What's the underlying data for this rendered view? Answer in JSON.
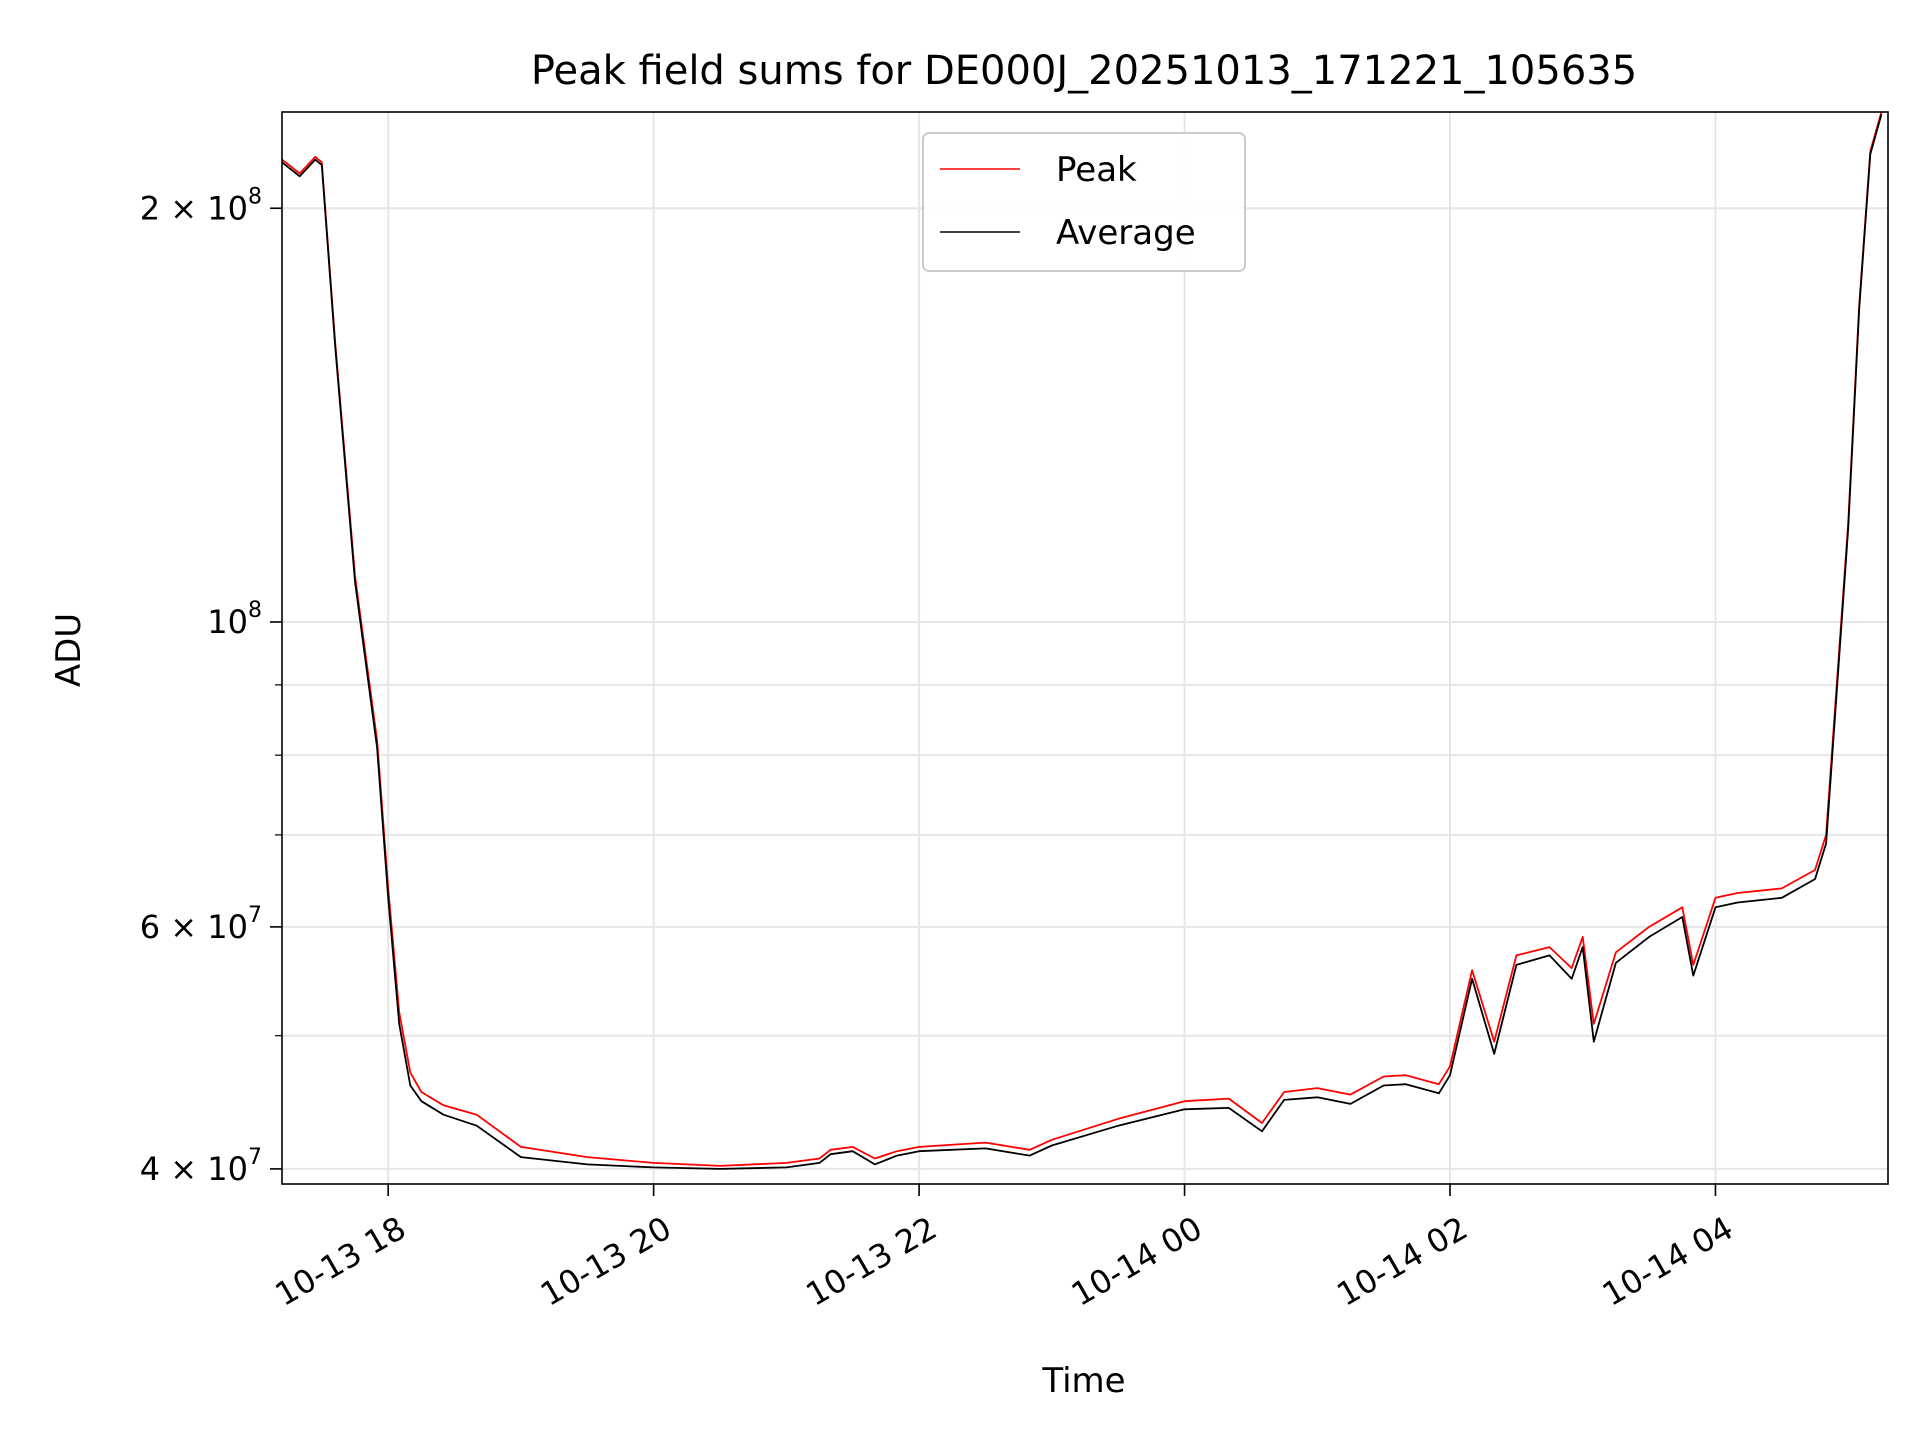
{
  "chart_data": {
    "type": "line",
    "title": "Peak field sums for DE000J_20251013_171221_105635",
    "xlabel": "Time",
    "ylabel": "ADU",
    "x_unit": "datetime",
    "xlim": [
      "2025-10-13 17:12",
      "2025-10-14 05:18"
    ],
    "ylim": [
      39000000,
      235000000
    ],
    "y_scale": "log",
    "grid": true,
    "legend_position": "top-center",
    "x_ticks": [
      {
        "value": "2025-10-13 18:00",
        "label": "10-13 18"
      },
      {
        "value": "2025-10-13 20:00",
        "label": "10-13 20"
      },
      {
        "value": "2025-10-13 22:00",
        "label": "10-13 22"
      },
      {
        "value": "2025-10-14 00:00",
        "label": "10-14 00"
      },
      {
        "value": "2025-10-14 02:00",
        "label": "10-14 02"
      },
      {
        "value": "2025-10-14 04:00",
        "label": "10-14 04"
      }
    ],
    "y_ticks": [
      {
        "value": 40000000,
        "mantissa": "4",
        "exponent": "7"
      },
      {
        "value": 60000000,
        "mantissa": "6",
        "exponent": "7"
      },
      {
        "value": 100000000,
        "mantissa": "",
        "exponent": "8"
      },
      {
        "value": 200000000,
        "mantissa": "2",
        "exponent": "8"
      }
    ],
    "y_minor_ticks": [
      50000000,
      70000000,
      80000000,
      90000000
    ],
    "series": [
      {
        "name": "Peak",
        "color": "#ff0000",
        "x": [
          "2025-10-13 17:12",
          "2025-10-13 17:20",
          "2025-10-13 17:27",
          "2025-10-13 17:30",
          "2025-10-13 17:36",
          "2025-10-13 17:45",
          "2025-10-13 17:55",
          "2025-10-13 18:00",
          "2025-10-13 18:05",
          "2025-10-13 18:10",
          "2025-10-13 18:15",
          "2025-10-13 18:25",
          "2025-10-13 18:40",
          "2025-10-13 19:00",
          "2025-10-13 19:30",
          "2025-10-13 20:00",
          "2025-10-13 20:30",
          "2025-10-13 21:00",
          "2025-10-13 21:15",
          "2025-10-13 21:20",
          "2025-10-13 21:30",
          "2025-10-13 21:40",
          "2025-10-13 21:50",
          "2025-10-13 22:00",
          "2025-10-13 22:30",
          "2025-10-13 22:50",
          "2025-10-13 23:00",
          "2025-10-13 23:30",
          "2025-10-14 00:00",
          "2025-10-14 00:20",
          "2025-10-14 00:35",
          "2025-10-14 00:45",
          "2025-10-14 01:00",
          "2025-10-14 01:15",
          "2025-10-14 01:30",
          "2025-10-14 01:40",
          "2025-10-14 01:55",
          "2025-10-14 02:00",
          "2025-10-14 02:10",
          "2025-10-14 02:20",
          "2025-10-14 02:30",
          "2025-10-14 02:45",
          "2025-10-14 02:55",
          "2025-10-14 03:00",
          "2025-10-14 03:05",
          "2025-10-14 03:15",
          "2025-10-14 03:30",
          "2025-10-14 03:45",
          "2025-10-14 03:50",
          "2025-10-14 04:00",
          "2025-10-14 04:10",
          "2025-10-14 04:30",
          "2025-10-14 04:45",
          "2025-10-14 04:50",
          "2025-10-14 05:00",
          "2025-10-14 05:05",
          "2025-10-14 05:10",
          "2025-10-14 05:15"
        ],
        "y": [
          217000000,
          212000000,
          218000000,
          216000000,
          160000000,
          108000000,
          82000000,
          64000000,
          52000000,
          47000000,
          45500000,
          44500000,
          43800000,
          41500000,
          40800000,
          40400000,
          40200000,
          40400000,
          40700000,
          41300000,
          41500000,
          40700000,
          41200000,
          41500000,
          41800000,
          41300000,
          42000000,
          43500000,
          44800000,
          45000000,
          43200000,
          45500000,
          45800000,
          45300000,
          46700000,
          46800000,
          46100000,
          47500000,
          55800000,
          49500000,
          57200000,
          58000000,
          56000000,
          59000000,
          51000000,
          57500000,
          60000000,
          62000000,
          56300000,
          63000000,
          63500000,
          64000000,
          66000000,
          70000000,
          118000000,
          170000000,
          220000000,
          235000000
        ]
      },
      {
        "name": "Average",
        "color": "#000000",
        "x": [
          "2025-10-13 17:12",
          "2025-10-13 17:20",
          "2025-10-13 17:27",
          "2025-10-13 17:30",
          "2025-10-13 17:36",
          "2025-10-13 17:45",
          "2025-10-13 17:55",
          "2025-10-13 18:00",
          "2025-10-13 18:05",
          "2025-10-13 18:10",
          "2025-10-13 18:15",
          "2025-10-13 18:25",
          "2025-10-13 18:40",
          "2025-10-13 19:00",
          "2025-10-13 19:30",
          "2025-10-13 20:00",
          "2025-10-13 20:30",
          "2025-10-13 21:00",
          "2025-10-13 21:15",
          "2025-10-13 21:20",
          "2025-10-13 21:30",
          "2025-10-13 21:40",
          "2025-10-13 21:50",
          "2025-10-13 22:00",
          "2025-10-13 22:30",
          "2025-10-13 22:50",
          "2025-10-13 23:00",
          "2025-10-13 23:30",
          "2025-10-14 00:00",
          "2025-10-14 00:20",
          "2025-10-14 00:35",
          "2025-10-14 00:45",
          "2025-10-14 01:00",
          "2025-10-14 01:15",
          "2025-10-14 01:30",
          "2025-10-14 01:40",
          "2025-10-14 01:55",
          "2025-10-14 02:00",
          "2025-10-14 02:10",
          "2025-10-14 02:20",
          "2025-10-14 02:30",
          "2025-10-14 02:45",
          "2025-10-14 02:55",
          "2025-10-14 03:00",
          "2025-10-14 03:05",
          "2025-10-14 03:15",
          "2025-10-14 03:30",
          "2025-10-14 03:45",
          "2025-10-14 03:50",
          "2025-10-14 04:00",
          "2025-10-14 04:10",
          "2025-10-14 04:30",
          "2025-10-14 04:45",
          "2025-10-14 04:50",
          "2025-10-14 05:00",
          "2025-10-14 05:05",
          "2025-10-14 05:10",
          "2025-10-14 05:15"
        ],
        "y": [
          216000000,
          211000000,
          217000000,
          215000000,
          159000000,
          107000000,
          81000000,
          63000000,
          51000000,
          46000000,
          44800000,
          43800000,
          43000000,
          40800000,
          40300000,
          40100000,
          40000000,
          40100000,
          40400000,
          41000000,
          41200000,
          40300000,
          40900000,
          41200000,
          41400000,
          40900000,
          41600000,
          43000000,
          44200000,
          44300000,
          42600000,
          44900000,
          45100000,
          44600000,
          46000000,
          46100000,
          45400000,
          46800000,
          55000000,
          48500000,
          56300000,
          57200000,
          55000000,
          58000000,
          49500000,
          56500000,
          59000000,
          61000000,
          55300000,
          62000000,
          62500000,
          63000000,
          65000000,
          69000000,
          117000000,
          169000000,
          219000000,
          234000000
        ]
      }
    ]
  }
}
